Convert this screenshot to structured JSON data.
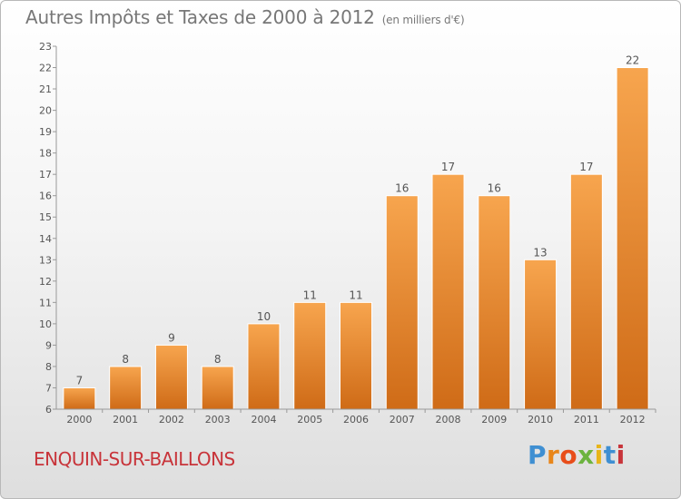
{
  "title": "Autres Impôts et Taxes de 2000 à 2012",
  "subtitle": "(en milliers d'€)",
  "commune": "ENQUIN-SUR-BAILLONS",
  "logo": {
    "p": "P",
    "r": "r",
    "o": "o",
    "x": "x",
    "i1": "i",
    "t": "t",
    "i2": "i"
  },
  "chart_data": {
    "type": "bar",
    "title": "Autres Impôts et Taxes de 2000 à 2012",
    "subtitle": "(en milliers d'€)",
    "categories": [
      "2000",
      "2001",
      "2002",
      "2003",
      "2004",
      "2005",
      "2006",
      "2007",
      "2008",
      "2009",
      "2010",
      "2011",
      "2012"
    ],
    "values": [
      7,
      8,
      9,
      8,
      10,
      11,
      11,
      16,
      17,
      16,
      13,
      17,
      22
    ],
    "ylim": [
      6,
      23
    ],
    "yticks": [
      6,
      7,
      8,
      9,
      10,
      11,
      12,
      13,
      14,
      15,
      16,
      17,
      18,
      19,
      20,
      21,
      22,
      23
    ],
    "grid": false,
    "colors": {
      "bar_light": "#f7a54e",
      "bar_dark": "#cf6b17",
      "axis": "#999999",
      "label": "#555555"
    }
  }
}
